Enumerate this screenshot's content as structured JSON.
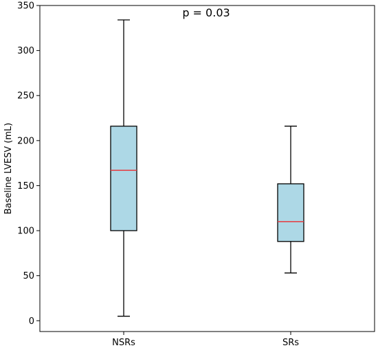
{
  "chart_data": {
    "type": "box",
    "categories": [
      "NSRs",
      "SRs"
    ],
    "boxes": [
      {
        "category": "NSRs",
        "whisker_low": 5,
        "q1": 100,
        "median": 167,
        "q3": 216,
        "whisker_high": 334
      },
      {
        "category": "SRs",
        "whisker_low": 53,
        "q1": 88,
        "median": 110,
        "q3": 152,
        "whisker_high": 216
      }
    ],
    "ylabel": "Baseline LVESV (mL)",
    "xlabel": "",
    "ylim": [
      -12,
      350
    ],
    "yticks": [
      0,
      50,
      100,
      150,
      200,
      250,
      300,
      350
    ],
    "annotation": "p = 0.03",
    "grid": false,
    "colors": {
      "box_fill": "#add8e6",
      "box_edge": "#000000",
      "median": "#e8383d",
      "axis": "#000000"
    }
  }
}
